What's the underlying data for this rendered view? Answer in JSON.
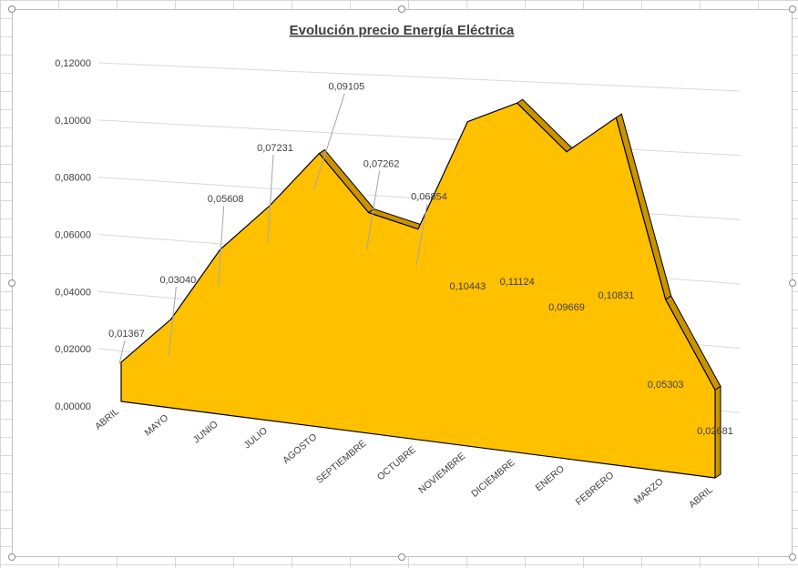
{
  "chart_data": {
    "type": "area",
    "title": "Evolución precio Energía Eléctrica",
    "categories": [
      "ABRIL",
      "MAYO",
      "JUNIO",
      "JULIO",
      "AGOSTO",
      "SEPTIEMBRE",
      "OCTUBRE",
      "NOVIEMBRE",
      "DICIEMBRE",
      "ENERO",
      "FEBRERO",
      "MARZO",
      "ABRIL"
    ],
    "values": [
      0.01367,
      0.0304,
      0.05608,
      0.07231,
      0.09105,
      0.07262,
      0.06854,
      0.10443,
      0.11124,
      0.09669,
      0.10831,
      0.05303,
      0.02681
    ],
    "value_labels": [
      "0,01367",
      "0,03040",
      "0,05608",
      "0,07231",
      "0,09105",
      "0,07262",
      "0,06854",
      "0,10443",
      "0,11124",
      "0,09669",
      "0,10831",
      "0,05303",
      "0,02681"
    ],
    "y_ticks": [
      "0,00000",
      "0,02000",
      "0,04000",
      "0,06000",
      "0,08000",
      "0,10000",
      "0,12000"
    ],
    "ylim": [
      0,
      0.12
    ],
    "grid": true,
    "perspective": "3d",
    "colors": {
      "fill": "#ffc000",
      "side": "#c99400",
      "outline": "#000000",
      "gridline": "#d9d9d9",
      "text": "#404040",
      "leader": "#a6a6a6"
    }
  }
}
